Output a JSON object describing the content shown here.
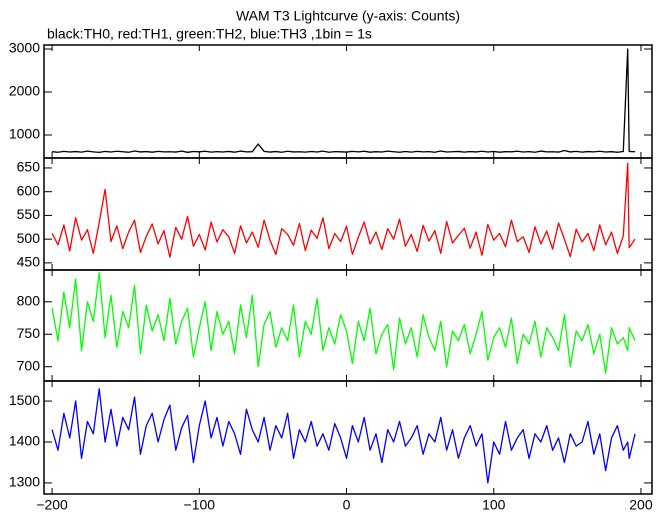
{
  "chart_data": {
    "type": "line",
    "title": "WAM T3 Lightcurve (y-axis: Counts)",
    "subtitle": "black:TH0, red:TH1, green:TH2, blue:TH3 ,1bin = 1s",
    "xlim": [
      -205.5,
      207.5
    ],
    "xticks": [
      {
        "value": -200,
        "label": "−200"
      },
      {
        "value": -100,
        "label": "−100"
      },
      0,
      100,
      200
    ],
    "x": [
      -200,
      -196,
      -192,
      -188,
      -184,
      -180,
      -176,
      -172,
      -168,
      -164,
      -160,
      -156,
      -152,
      -148,
      -144,
      -140,
      -136,
      -132,
      -128,
      -124,
      -120,
      -116,
      -112,
      -108,
      -104,
      -100,
      -96,
      -92,
      -88,
      -84,
      -80,
      -76,
      -72,
      -68,
      -64,
      -60,
      -56,
      -52,
      -48,
      -44,
      -40,
      -36,
      -32,
      -28,
      -24,
      -20,
      -16,
      -12,
      -8,
      -4,
      0,
      4,
      8,
      12,
      16,
      20,
      24,
      28,
      32,
      36,
      40,
      44,
      48,
      52,
      56,
      60,
      64,
      68,
      72,
      76,
      80,
      84,
      88,
      92,
      96,
      100,
      104,
      108,
      112,
      116,
      120,
      124,
      128,
      132,
      136,
      140,
      144,
      148,
      152,
      156,
      160,
      164,
      168,
      172,
      176,
      180,
      184,
      188,
      191,
      192,
      196
    ],
    "panels": [
      {
        "color": "#000000",
        "ylim": [
          465,
          3093
        ],
        "yticks": [
          1000,
          2000,
          3000
        ],
        "values": [
          612,
          598,
          620,
          605,
          615,
          601,
          625,
          608,
          596,
          618,
          604,
          622,
          610,
          599,
          628,
          606,
          615,
          600,
          619,
          607,
          611,
          603,
          624,
          597,
          616,
          609,
          621,
          602,
          613,
          605,
          618,
          600,
          626,
          608,
          612,
          790,
          620,
          603,
          615,
          599,
          622,
          606,
          611,
          601,
          617,
          604,
          625,
          598,
          614,
          609,
          603,
          619,
          607,
          621,
          600,
          612,
          605,
          624,
          610,
          598,
          616,
          602,
          620,
          608,
          613,
          599,
          627,
          605,
          611,
          618,
          601,
          615,
          606,
          622,
          604,
          617,
          600,
          612,
          609,
          623,
          605,
          614,
          599,
          626,
          608,
          611,
          603,
          640,
          606,
          619,
          602,
          615,
          608,
          621,
          604,
          612,
          599,
          617,
          3000,
          618,
          610
        ]
      },
      {
        "color": "#ff0000",
        "ylim": [
          435,
          671
        ],
        "yticks": [
          450,
          500,
          550,
          600,
          650
        ],
        "values": [
          512,
          488,
          530,
          475,
          545,
          498,
          520,
          470,
          535,
          605,
          495,
          528,
          480,
          515,
          540,
          472,
          506,
          532,
          490,
          518,
          462,
          525,
          500,
          548,
          485,
          510,
          477,
          536,
          494,
          520,
          505,
          470,
          528,
          492,
          515,
          483,
          540,
          498,
          468,
          522,
          510,
          487,
          533,
          476,
          519,
          502,
          545,
          480,
          512,
          495,
          527,
          468,
          504,
          536,
          490,
          515,
          478,
          522,
          500,
          542,
          485,
          510,
          474,
          529,
          496,
          518,
          470,
          537,
          492,
          508,
          523,
          481,
          515,
          466,
          531,
          498,
          512,
          484,
          540,
          495,
          505,
          472,
          526,
          490,
          517,
          479,
          534,
          500,
          463,
          521,
          494,
          512,
          476,
          530,
          488,
          515,
          470,
          507,
          660,
          482,
          500
        ]
      },
      {
        "color": "#00ff00",
        "ylim": [
          678,
          849
        ],
        "yticks": [
          700,
          750,
          800
        ],
        "values": [
          790,
          740,
          815,
          760,
          835,
          725,
          800,
          770,
          845,
          745,
          810,
          730,
          785,
          760,
          825,
          720,
          795,
          755,
          780,
          740,
          805,
          735,
          770,
          790,
          715,
          760,
          800,
          725,
          785,
          750,
          770,
          720,
          795,
          745,
          810,
          700,
          765,
          785,
          730,
          760,
          740,
          795,
          715,
          770,
          750,
          805,
          725,
          760,
          735,
          780,
          755,
          705,
          770,
          740,
          790,
          720,
          750,
          765,
          695,
          775,
          735,
          760,
          715,
          780,
          745,
          725,
          770,
          700,
          755,
          740,
          765,
          720,
          750,
          785,
          710,
          745,
          760,
          730,
          775,
          705,
          750,
          735,
          770,
          715,
          760,
          745,
          725,
          780,
          700,
          755,
          740,
          765,
          720,
          750,
          690,
          760,
          735,
          745,
          725,
          760,
          740
        ]
      },
      {
        "color": "#0000ff",
        "ylim": [
          1273,
          1549
        ],
        "yticks": [
          1300,
          1400,
          1500
        ],
        "values": [
          1430,
          1380,
          1470,
          1410,
          1500,
          1360,
          1450,
          1420,
          1530,
          1400,
          1480,
          1390,
          1460,
          1430,
          1510,
          1370,
          1440,
          1470,
          1400,
          1455,
          1490,
          1380,
          1435,
          1465,
          1350,
          1440,
          1500,
          1410,
          1460,
          1390,
          1450,
          1420,
          1370,
          1480,
          1430,
          1400,
          1460,
          1380,
          1440,
          1410,
          1470,
          1360,
          1430,
          1400,
          1450,
          1390,
          1420,
          1380,
          1445,
          1410,
          1360,
          1440,
          1400,
          1460,
          1380,
          1420,
          1350,
          1430,
          1400,
          1450,
          1390,
          1410,
          1440,
          1370,
          1420,
          1400,
          1460,
          1380,
          1430,
          1360,
          1410,
          1440,
          1390,
          1420,
          1300,
          1400,
          1370,
          1450,
          1380,
          1410,
          1430,
          1360,
          1420,
          1400,
          1440,
          1380,
          1410,
          1350,
          1420,
          1390,
          1400,
          1450,
          1370,
          1420,
          1330,
          1410,
          1440,
          1380,
          1400,
          1360,
          1420
        ]
      }
    ]
  }
}
